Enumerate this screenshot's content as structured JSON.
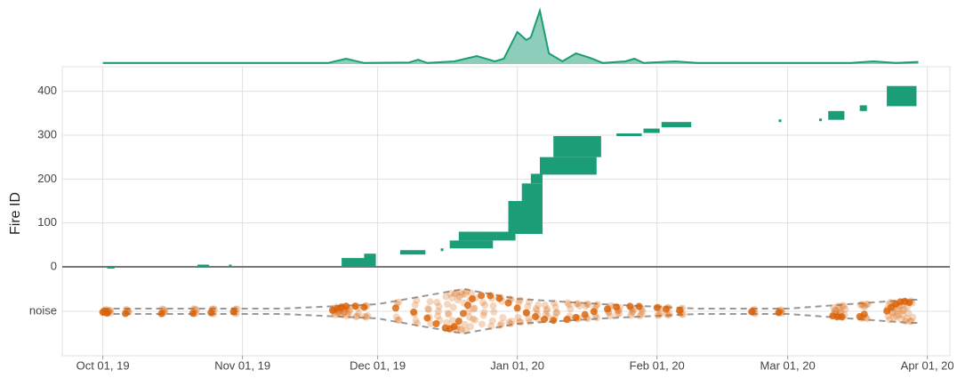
{
  "chart_data": [
    {
      "type": "area",
      "color": "#1b9e77",
      "ylim": [
        0,
        1
      ],
      "x": [
        "2019-10-01",
        "2019-11-20",
        "2019-11-24",
        "2019-11-28",
        "2019-12-08",
        "2019-12-10",
        "2019-12-12",
        "2019-12-18",
        "2019-12-23",
        "2019-12-27",
        "2019-12-29",
        "2020-01-01",
        "2020-01-03",
        "2020-01-04",
        "2020-01-06",
        "2020-01-08",
        "2020-01-11",
        "2020-01-14",
        "2020-01-17",
        "2020-01-20",
        "2020-01-25",
        "2020-01-27",
        "2020-01-29",
        "2020-02-05",
        "2020-02-10",
        "2020-03-01",
        "2020-03-15",
        "2020-03-20",
        "2020-03-25",
        "2020-03-30"
      ],
      "values": [
        0.02,
        0.02,
        0.1,
        0.02,
        0.03,
        0.08,
        0.02,
        0.05,
        0.15,
        0.05,
        0.1,
        0.6,
        0.45,
        0.5,
        1.0,
        0.2,
        0.05,
        0.2,
        0.12,
        0.02,
        0.05,
        0.1,
        0.02,
        0.05,
        0.02,
        0.02,
        0.02,
        0.05,
        0.02,
        0.04
      ]
    },
    {
      "type": "range",
      "color": "#1b9e77",
      "y_label": "Fire ID",
      "xlim": [
        "2019-09-22",
        "2020-04-06"
      ],
      "xticks": [
        {
          "value": "2019-10-01",
          "label": "Oct 01, 19"
        },
        {
          "value": "2019-11-01",
          "label": "Nov 01, 19"
        },
        {
          "value": "2019-12-01",
          "label": "Dec 01, 19"
        },
        {
          "value": "2020-01-01",
          "label": "Jan 01, 20"
        },
        {
          "value": "2020-02-01",
          "label": "Feb 01, 20"
        },
        {
          "value": "2020-03-01",
          "label": "Mar 01, 20"
        },
        {
          "value": "2020-04-01",
          "label": "Apr 01, 20"
        }
      ],
      "ylim": [
        0,
        456
      ],
      "yticks": [
        0,
        100,
        200,
        300,
        400
      ],
      "grid": true,
      "fires": [
        {
          "start": "2019-10-02",
          "end": "2019-10-03",
          "id_min": 0,
          "id_max": 2
        },
        {
          "start": "2019-10-22",
          "end": "2019-10-24",
          "id_min": 0,
          "id_max": 5
        },
        {
          "start": "2019-10-29",
          "end": "2019-10-29",
          "id_min": 0,
          "id_max": 5
        },
        {
          "start": "2019-11-23",
          "end": "2019-11-30",
          "id_min": 0,
          "id_max": 20
        },
        {
          "start": "2019-11-28",
          "end": "2019-11-30",
          "id_min": 15,
          "id_max": 30
        },
        {
          "start": "2019-12-06",
          "end": "2019-12-11",
          "id_min": 28,
          "id_max": 38
        },
        {
          "start": "2019-12-15",
          "end": "2019-12-15",
          "id_min": 38,
          "id_max": 42
        },
        {
          "start": "2019-12-17",
          "end": "2019-12-26",
          "id_min": 42,
          "id_max": 60
        },
        {
          "start": "2019-12-19",
          "end": "2019-12-31",
          "id_min": 60,
          "id_max": 80
        },
        {
          "start": "2019-12-30",
          "end": "2020-01-06",
          "id_min": 75,
          "id_max": 150
        },
        {
          "start": "2020-01-02",
          "end": "2020-01-06",
          "id_min": 150,
          "id_max": 190
        },
        {
          "start": "2020-01-04",
          "end": "2020-01-06",
          "id_min": 190,
          "id_max": 212
        },
        {
          "start": "2020-01-06",
          "end": "2020-01-18",
          "id_min": 210,
          "id_max": 250
        },
        {
          "start": "2020-01-09",
          "end": "2020-01-19",
          "id_min": 250,
          "id_max": 298
        },
        {
          "start": "2020-01-23",
          "end": "2020-01-28",
          "id_min": 298,
          "id_max": 304
        },
        {
          "start": "2020-01-29",
          "end": "2020-02-01",
          "id_min": 305,
          "id_max": 315
        },
        {
          "start": "2020-02-02",
          "end": "2020-02-08",
          "id_min": 318,
          "id_max": 330
        },
        {
          "start": "2020-02-28",
          "end": "2020-02-28",
          "id_min": 330,
          "id_max": 336
        },
        {
          "start": "2020-03-08",
          "end": "2020-03-08",
          "id_min": 335,
          "id_max": 338
        },
        {
          "start": "2020-03-10",
          "end": "2020-03-13",
          "id_min": 335,
          "id_max": 355
        },
        {
          "start": "2020-03-17",
          "end": "2020-03-18",
          "id_min": 355,
          "id_max": 368
        },
        {
          "start": "2020-03-23",
          "end": "2020-03-29",
          "id_min": 366,
          "id_max": 412
        }
      ]
    },
    {
      "type": "strip",
      "color": "#d95f02",
      "categories": [
        "noise"
      ],
      "x": [
        "2019-10-01",
        "2019-10-02",
        "2019-10-06",
        "2019-10-14",
        "2019-10-21",
        "2019-10-25",
        "2019-10-30",
        "2019-11-21",
        "2019-11-22",
        "2019-11-23",
        "2019-11-24",
        "2019-11-26",
        "2019-11-28",
        "2019-12-05",
        "2019-12-09",
        "2019-12-12",
        "2019-12-14",
        "2019-12-16",
        "2019-12-17",
        "2019-12-18",
        "2019-12-19",
        "2019-12-20",
        "2019-12-21",
        "2019-12-22",
        "2019-12-24",
        "2019-12-26",
        "2019-12-28",
        "2019-12-30",
        "2020-01-01",
        "2020-01-03",
        "2020-01-05",
        "2020-01-07",
        "2020-01-09",
        "2020-01-12",
        "2020-01-14",
        "2020-01-16",
        "2020-01-18",
        "2020-01-21",
        "2020-01-23",
        "2020-01-26",
        "2020-01-28",
        "2020-02-01",
        "2020-02-03",
        "2020-02-06",
        "2020-02-22",
        "2020-02-28",
        "2020-03-11",
        "2020-03-12",
        "2020-03-13",
        "2020-03-17",
        "2020-03-18",
        "2020-03-23",
        "2020-03-24",
        "2020-03-25",
        "2020-03-26",
        "2020-03-27",
        "2020-03-28"
      ],
      "width_x": [
        "2019-10-01",
        "2019-11-10",
        "2019-12-01",
        "2019-12-20",
        "2020-01-01",
        "2020-01-20",
        "2020-02-10",
        "2020-03-01",
        "2020-03-20",
        "2020-03-28",
        "2020-03-30"
      ],
      "width": [
        3,
        3,
        8,
        25,
        14,
        8,
        3,
        3,
        10,
        13,
        13
      ]
    }
  ]
}
